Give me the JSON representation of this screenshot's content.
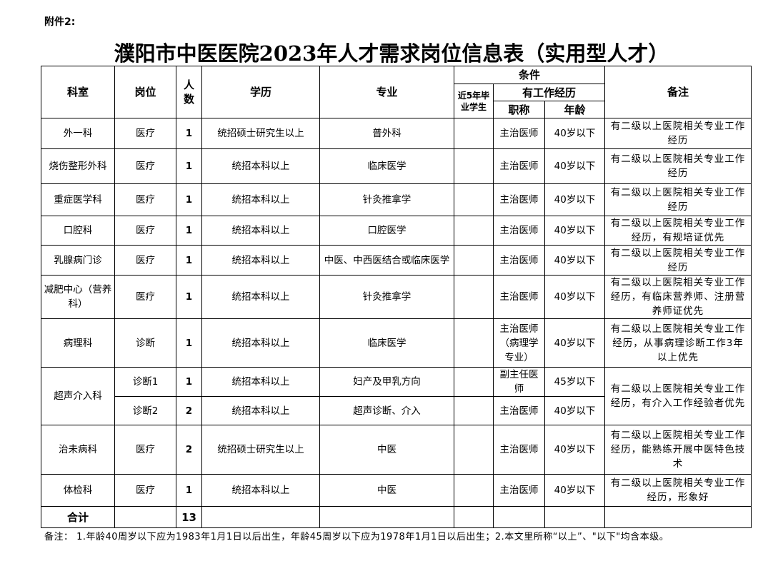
{
  "attachment": "附件2:",
  "title": "濮阳市中医医院2023年人才需求岗位信息表（实用型人才）",
  "headers": {
    "dept": "科室",
    "post": "岗位",
    "count": "人\n数",
    "edu": "学历",
    "major": "专业",
    "cond": "条件",
    "recent": "近5年毕业学生",
    "exp": "有工作经历",
    "rank": "职称",
    "age": "年龄",
    "remark": "备注"
  },
  "rows": [
    {
      "dept": "外一科",
      "post": "医疗",
      "count": "1",
      "edu": "统招硕士研究生以上",
      "major": "普外科",
      "rank": "主治医师",
      "age": "40岁以下",
      "remark": "有二级以上医院相关专业工作经历"
    },
    {
      "dept": "烧伤整形外科",
      "post": "医疗",
      "count": "1",
      "edu": "统招本科以上",
      "major": "临床医学",
      "rank": "主治医师",
      "age": "40岁以下",
      "remark": "有二级以上医院相关专业工作经历"
    },
    {
      "dept": "重症医学科",
      "post": "医疗",
      "count": "1",
      "edu": "统招本科以上",
      "major": "针灸推拿学",
      "rank": "主治医师",
      "age": "40岁以下",
      "remark": "有二级以上医院相关专业工作经历"
    },
    {
      "dept": "口腔科",
      "post": "医疗",
      "count": "1",
      "edu": "统招本科以上",
      "major": "口腔医学",
      "rank": "主治医师",
      "age": "40岁以下",
      "remark": "有二级以上医院相关专业工作经历，有规培证优先"
    },
    {
      "dept": "乳腺病门诊",
      "post": "医疗",
      "count": "1",
      "edu": "统招本科以上",
      "major": "中医、中西医结合或临床医学",
      "rank": "主治医师",
      "age": "40岁以下",
      "remark": "有二级以上医院相关专业工作经历"
    },
    {
      "dept": "减肥中心（营养科）",
      "post": "医疗",
      "count": "1",
      "edu": "统招本科以上",
      "major": "针灸推拿学",
      "rank": "主治医师",
      "age": "40岁以下",
      "remark": "有二级以上医院相关专业工作经历，有临床营养师、注册营养师证优先"
    },
    {
      "dept": "病理科",
      "post": "诊断",
      "count": "1",
      "edu": "统招本科以上",
      "major": "临床医学",
      "rank": "主治医师（病理学专业）",
      "age": "40岁以下",
      "remark": "有二级以上医院相关专业工作经历，从事病理诊断工作3年以上优先"
    },
    {
      "dept": "超声介入科",
      "post": "诊断1",
      "count": "1",
      "edu": "统招本科以上",
      "major": "妇产及甲乳方向",
      "rank": "副主任医师",
      "age": "45岁以下",
      "remark": "有二级以上医院相关专业工作经历，有介入工作经验者优先"
    },
    {
      "post": "诊断2",
      "count": "2",
      "edu": "统招本科以上",
      "major": "超声诊断、介入",
      "rank": "主治医师",
      "age": "40岁以下"
    },
    {
      "dept": "治未病科",
      "post": "医疗",
      "count": "2",
      "edu": "统招硕士研究生以上",
      "major": "中医",
      "rank": "主治医师",
      "age": "40岁以下",
      "remark": "有二级以上医院相关专业工作经历，能熟练开展中医特色技术"
    },
    {
      "dept": "体检科",
      "post": "医疗",
      "count": "1",
      "edu": "统招本科以上",
      "major": "中医",
      "rank": "主治医师",
      "age": "40岁以下",
      "remark": "有二级以上医院相关专业工作经历，形象好"
    }
  ],
  "total": {
    "label": "合计",
    "count": "13"
  },
  "note": "备注： 1.年龄40周岁以下应为1983年1月1日以后出生，年龄45周岁以下应为1978年1月1日以后出生；2.本文里所称“以上”、\"以下\"均含本级。"
}
